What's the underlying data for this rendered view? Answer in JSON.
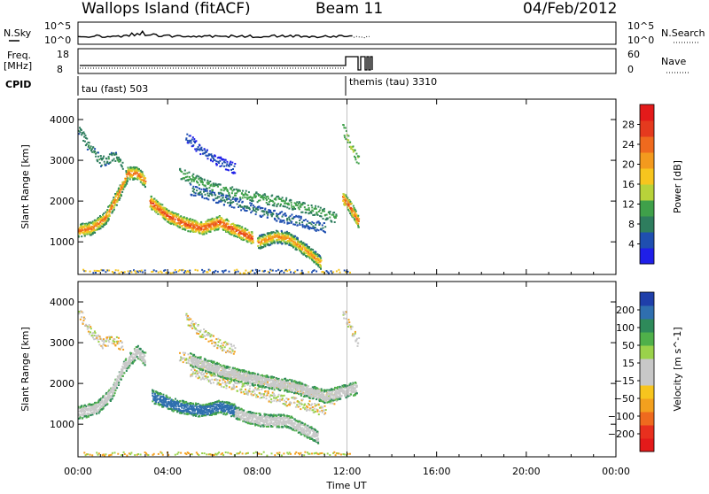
{
  "header": {
    "station": "Wallops Island (fitACF)",
    "beam": "Beam 11",
    "date": "04/Feb/2012"
  },
  "noise_panel": {
    "left_label": "N.Sky",
    "right_label": "N.Search",
    "ticks": [
      "10^5",
      "10^0"
    ],
    "right_ticks": [
      "10^5",
      "10^0"
    ]
  },
  "freq_panel": {
    "left_label_1": "Freq.",
    "left_label_2": "[MHz]",
    "ticks": [
      "18",
      "8"
    ],
    "right_label": "Nave",
    "right_ticks": [
      "60",
      "0"
    ]
  },
  "cpid": {
    "label": "CPID",
    "mode_1": "tau (fast) 503",
    "mode_2": "themis (tau) 3310"
  },
  "axes": {
    "ylabel": "Slant Range [km]",
    "xlabel": "Time UT",
    "x_ticks": [
      "00:00",
      "04:00",
      "08:00",
      "12:00",
      "16:00",
      "20:00",
      "00:00"
    ],
    "y_ticks": [
      "1000",
      "2000",
      "3000",
      "4000"
    ]
  },
  "colorbars": {
    "power": {
      "label": "Power [dB]",
      "ticks": [
        "4",
        "8",
        "12",
        "16",
        "20",
        "24",
        "28"
      ],
      "colors": [
        "#1f1fe8",
        "#1f4fb0",
        "#2e7d5e",
        "#3fa04a",
        "#b8d23a",
        "#f7c51e",
        "#f39a1e",
        "#ef6a1e",
        "#e53a1e",
        "#e31a1a"
      ]
    },
    "velocity": {
      "label": "Velocity [m s^-1]",
      "ticks": [
        "200",
        "100",
        "50",
        "15",
        "−15",
        "−50",
        "−100",
        "−200"
      ],
      "colors": [
        "#1f3faa",
        "#2f6faf",
        "#2e8a5a",
        "#4fb04a",
        "#9ad24a",
        "#c8c8c8",
        "#c8c8c8",
        "#f7c51e",
        "#f3a01e",
        "#ef6a1e",
        "#e8301e",
        "#e31a1a"
      ]
    }
  },
  "chart_data": {
    "type": "heatmap",
    "x_unit": "hours UT",
    "xlim": [
      0,
      24
    ],
    "ylim": [
      200,
      4500
    ],
    "power_bands": [
      {
        "name": "band-a",
        "points": [
          [
            0.0,
            1300
          ],
          [
            0.6,
            1350
          ],
          [
            1.2,
            1600
          ],
          [
            1.8,
            2200
          ],
          [
            2.2,
            2700
          ],
          [
            2.6,
            2700
          ],
          [
            3.0,
            2500
          ]
        ],
        "level": 24
      },
      {
        "name": "band-b",
        "points": [
          [
            3.2,
            2000
          ],
          [
            4.0,
            1650
          ],
          [
            4.8,
            1450
          ],
          [
            5.5,
            1350
          ],
          [
            6.3,
            1500
          ],
          [
            7.0,
            1300
          ],
          [
            7.8,
            1100
          ]
        ],
        "level": 26
      },
      {
        "name": "band-c",
        "points": [
          [
            8.0,
            1000
          ],
          [
            8.8,
            1150
          ],
          [
            9.4,
            1100
          ],
          [
            9.9,
            900
          ],
          [
            10.4,
            700
          ],
          [
            10.8,
            500
          ]
        ],
        "level": 22
      },
      {
        "name": "band-d",
        "points": [
          [
            11.8,
            2100
          ],
          [
            12.1,
            1900
          ],
          [
            12.3,
            1700
          ],
          [
            12.5,
            1500
          ]
        ],
        "level": 25
      }
    ],
    "power_faint": [
      {
        "points": [
          [
            0.0,
            3800
          ],
          [
            0.4,
            3400
          ],
          [
            1.0,
            3000
          ],
          [
            1.6,
            3100
          ],
          [
            2.0,
            2900
          ]
        ],
        "level": 10
      },
      {
        "points": [
          [
            4.5,
            2700
          ],
          [
            6.0,
            2350
          ],
          [
            7.5,
            2150
          ],
          [
            9.0,
            2000
          ],
          [
            10.5,
            1800
          ],
          [
            11.5,
            1600
          ]
        ],
        "level": 12
      },
      {
        "points": [
          [
            5.0,
            2300
          ],
          [
            6.5,
            2050
          ],
          [
            8.5,
            1700
          ],
          [
            10.0,
            1500
          ],
          [
            11.0,
            1350
          ]
        ],
        "level": 8
      },
      {
        "points": [
          [
            4.8,
            3600
          ],
          [
            5.6,
            3200
          ],
          [
            6.2,
            3000
          ],
          [
            7.0,
            2800
          ]
        ],
        "level": 6
      },
      {
        "points": [
          [
            11.8,
            3800
          ],
          [
            12.2,
            3300
          ],
          [
            12.5,
            3000
          ]
        ],
        "level": 14
      }
    ],
    "velocity_bands": [
      {
        "points": [
          [
            0.0,
            1300
          ],
          [
            0.8,
            1400
          ],
          [
            1.5,
            1800
          ],
          [
            2.0,
            2400
          ],
          [
            2.6,
            2800
          ],
          [
            3.0,
            2600
          ]
        ],
        "color": "#c8c8c8"
      },
      {
        "points": [
          [
            3.3,
            1700
          ],
          [
            4.2,
            1500
          ],
          [
            4.9,
            1400
          ],
          [
            5.6,
            1350
          ],
          [
            6.3,
            1450
          ],
          [
            7.0,
            1350
          ]
        ],
        "color": "#2f6faf"
      },
      {
        "points": [
          [
            7.0,
            1300
          ],
          [
            7.8,
            1150
          ],
          [
            8.5,
            1100
          ],
          [
            9.3,
            1100
          ],
          [
            10.0,
            900
          ],
          [
            10.7,
            700
          ]
        ],
        "color": "#c8c8c8"
      },
      {
        "points": [
          [
            5.0,
            2600
          ],
          [
            6.5,
            2300
          ],
          [
            8.0,
            2100
          ],
          [
            9.5,
            1950
          ],
          [
            11.0,
            1700
          ],
          [
            12.4,
            1900
          ]
        ],
        "color": "#c8c8c8"
      }
    ]
  }
}
